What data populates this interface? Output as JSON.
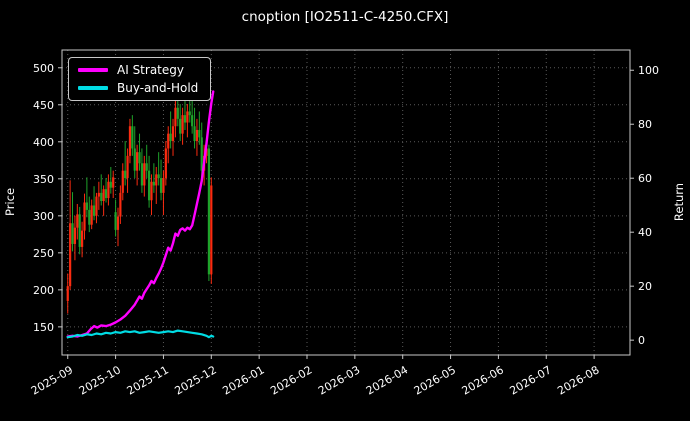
{
  "title": "cnoption [IO2511-C-4250.CFX]",
  "colors": {
    "background": "#000000",
    "text": "#ffffff",
    "grid": "#5a5a5a",
    "spine": "#c8c8c8",
    "tick": "#c8c8c8",
    "candle_up": "#fb2b10",
    "candle_down": "#1fa32b"
  },
  "chart_data": {
    "type": "candlestick+line",
    "title": "cnoption [IO2511-C-4250.CFX]",
    "ylabel_left": "Price",
    "ylabel_right": "Return",
    "grid": "dotted",
    "legend_position": "upper-left",
    "x_tick_labels": [
      "2025-09",
      "2025-10",
      "2025-11",
      "2025-12",
      "2026-01",
      "2026-02",
      "2026-03",
      "2026-04",
      "2026-05",
      "2026-06",
      "2026-07",
      "2026-08"
    ],
    "x_lim": [
      -0.12,
      11.75
    ],
    "price_ticks": [
      150,
      200,
      250,
      300,
      350,
      400,
      450,
      500
    ],
    "price_lim": [
      112,
      524
    ],
    "return_ticks": [
      0,
      20,
      40,
      60,
      80,
      100
    ],
    "return_lim": [
      -5.5,
      107.5
    ],
    "legend": [
      {
        "label": "AI Strategy",
        "color": "#ff00ff"
      },
      {
        "label": "Buy-and-Hold",
        "color": "#00dce4"
      }
    ],
    "series": [
      {
        "name": "AI Strategy",
        "axis": "price",
        "color": "#ff00ff",
        "width": 2.4,
        "points": [
          [
            0.0,
            137
          ],
          [
            0.1,
            138
          ],
          [
            0.2,
            137
          ],
          [
            0.3,
            139
          ],
          [
            0.4,
            141
          ],
          [
            0.48,
            147
          ],
          [
            0.55,
            151
          ],
          [
            0.62,
            149
          ],
          [
            0.7,
            152
          ],
          [
            0.8,
            151
          ],
          [
            0.9,
            153
          ],
          [
            1.0,
            156
          ],
          [
            1.1,
            160
          ],
          [
            1.2,
            165
          ],
          [
            1.3,
            172
          ],
          [
            1.4,
            180
          ],
          [
            1.5,
            191
          ],
          [
            1.55,
            188
          ],
          [
            1.6,
            196
          ],
          [
            1.7,
            206
          ],
          [
            1.75,
            212
          ],
          [
            1.8,
            209
          ],
          [
            1.85,
            216
          ],
          [
            1.9,
            222
          ],
          [
            1.95,
            229
          ],
          [
            2.0,
            237
          ],
          [
            2.05,
            247
          ],
          [
            2.1,
            257
          ],
          [
            2.15,
            253
          ],
          [
            2.2,
            263
          ],
          [
            2.25,
            276
          ],
          [
            2.3,
            273
          ],
          [
            2.35,
            281
          ],
          [
            2.4,
            283
          ],
          [
            2.45,
            280
          ],
          [
            2.5,
            284
          ],
          [
            2.55,
            282
          ],
          [
            2.6,
            287
          ],
          [
            2.65,
            301
          ],
          [
            2.7,
            316
          ],
          [
            2.75,
            331
          ],
          [
            2.8,
            347
          ],
          [
            2.85,
            372
          ],
          [
            2.9,
            398
          ],
          [
            2.95,
            427
          ],
          [
            3.0,
            452
          ],
          [
            3.04,
            468
          ]
        ]
      },
      {
        "name": "Buy-and-Hold",
        "axis": "price",
        "color": "#00dce4",
        "width": 2.2,
        "points": [
          [
            0.0,
            136
          ],
          [
            0.1,
            137
          ],
          [
            0.2,
            139
          ],
          [
            0.3,
            138
          ],
          [
            0.4,
            140
          ],
          [
            0.5,
            139
          ],
          [
            0.6,
            141
          ],
          [
            0.7,
            140
          ],
          [
            0.8,
            142
          ],
          [
            0.9,
            141
          ],
          [
            1.0,
            143
          ],
          [
            1.1,
            142
          ],
          [
            1.2,
            144
          ],
          [
            1.3,
            143
          ],
          [
            1.4,
            144
          ],
          [
            1.5,
            142
          ],
          [
            1.6,
            143
          ],
          [
            1.7,
            144
          ],
          [
            1.8,
            143
          ],
          [
            1.9,
            142
          ],
          [
            2.0,
            143
          ],
          [
            2.1,
            144
          ],
          [
            2.2,
            143
          ],
          [
            2.3,
            145
          ],
          [
            2.4,
            144
          ],
          [
            2.5,
            143
          ],
          [
            2.6,
            142
          ],
          [
            2.7,
            141
          ],
          [
            2.8,
            140
          ],
          [
            2.9,
            138
          ],
          [
            2.95,
            136
          ],
          [
            3.0,
            138
          ],
          [
            3.04,
            137
          ]
        ]
      }
    ],
    "candles": [
      [
        0.0,
        185,
        222,
        168,
        205
      ],
      [
        0.05,
        205,
        348,
        200,
        290
      ],
      [
        0.1,
        290,
        332,
        252,
        262
      ],
      [
        0.15,
        262,
        300,
        240,
        284
      ],
      [
        0.2,
        284,
        316,
        268,
        302
      ],
      [
        0.25,
        302,
        312,
        248,
        258
      ],
      [
        0.3,
        258,
        292,
        244,
        280
      ],
      [
        0.35,
        280,
        330,
        268,
        318
      ],
      [
        0.4,
        318,
        352,
        298,
        308
      ],
      [
        0.45,
        308,
        326,
        278,
        288
      ],
      [
        0.5,
        288,
        322,
        282,
        314
      ],
      [
        0.55,
        314,
        340,
        294,
        300
      ],
      [
        0.6,
        300,
        331,
        290,
        326
      ],
      [
        0.65,
        326,
        346,
        308,
        331
      ],
      [
        0.7,
        331,
        356,
        314,
        320
      ],
      [
        0.75,
        320,
        341,
        300,
        336
      ],
      [
        0.8,
        336,
        351,
        318,
        324
      ],
      [
        0.85,
        324,
        356,
        314,
        346
      ],
      [
        0.9,
        346,
        366,
        330,
        338
      ],
      [
        0.95,
        338,
        361,
        324,
        352
      ],
      [
        1.0,
        305,
        322,
        272,
        281
      ],
      [
        1.05,
        281,
        311,
        259,
        299
      ],
      [
        1.1,
        299,
        341,
        289,
        331
      ],
      [
        1.15,
        331,
        371,
        321,
        361
      ],
      [
        1.2,
        361,
        401,
        341,
        351
      ],
      [
        1.25,
        351,
        391,
        331,
        381
      ],
      [
        1.3,
        381,
        431,
        371,
        421
      ],
      [
        1.35,
        421,
        436,
        381,
        391
      ],
      [
        1.4,
        391,
        421,
        351,
        361
      ],
      [
        1.45,
        361,
        396,
        341,
        386
      ],
      [
        1.5,
        386,
        411,
        361,
        371
      ],
      [
        1.55,
        371,
        391,
        331,
        341
      ],
      [
        1.6,
        341,
        381,
        326,
        371
      ],
      [
        1.65,
        371,
        396,
        351,
        361
      ],
      [
        1.7,
        361,
        381,
        311,
        321
      ],
      [
        1.75,
        321,
        356,
        301,
        346
      ],
      [
        1.8,
        346,
        371,
        331,
        341
      ],
      [
        1.85,
        341,
        366,
        316,
        356
      ],
      [
        1.9,
        356,
        386,
        341,
        351
      ],
      [
        1.95,
        351,
        376,
        321,
        331
      ],
      [
        2.0,
        331,
        361,
        301,
        351
      ],
      [
        2.05,
        351,
        401,
        341,
        391
      ],
      [
        2.1,
        391,
        421,
        371,
        411
      ],
      [
        2.15,
        411,
        441,
        391,
        401
      ],
      [
        2.2,
        401,
        431,
        381,
        421
      ],
      [
        2.25,
        421,
        456,
        406,
        446
      ],
      [
        2.3,
        446,
        466,
        421,
        431
      ],
      [
        2.35,
        431,
        451,
        401,
        411
      ],
      [
        2.4,
        411,
        446,
        396,
        436
      ],
      [
        2.45,
        436,
        461,
        416,
        426
      ],
      [
        2.5,
        426,
        451,
        406,
        441
      ],
      [
        2.55,
        441,
        466,
        426,
        436
      ],
      [
        2.6,
        436,
        456,
        411,
        421
      ],
      [
        2.65,
        421,
        446,
        391,
        401
      ],
      [
        2.7,
        401,
        431,
        381,
        416
      ],
      [
        2.75,
        416,
        441,
        396,
        406
      ],
      [
        2.8,
        406,
        426,
        351,
        361
      ],
      [
        2.85,
        361,
        396,
        341,
        381
      ],
      [
        2.9,
        381,
        401,
        371,
        391
      ],
      [
        2.95,
        391,
        396,
        212,
        221
      ],
      [
        3.0,
        221,
        352,
        208,
        341
      ]
    ]
  }
}
